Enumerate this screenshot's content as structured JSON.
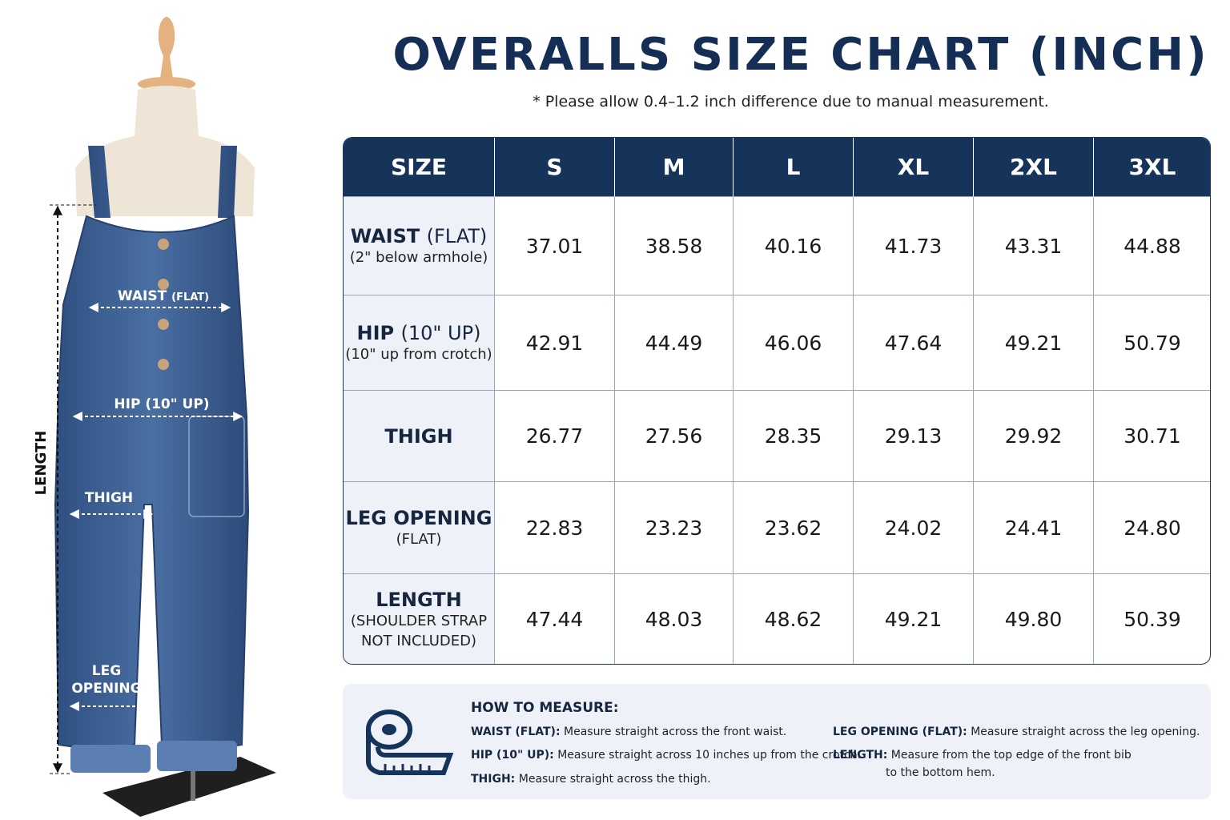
{
  "title": "OVERALLS SIZE CHART (INCH)",
  "subtitle": "* Please allow 0.4–1.2 inch difference due to manual measurement.",
  "figure": {
    "waist": "WAIST",
    "waist_note": "(FLAT)",
    "hip": "HIP (10\" UP)",
    "thigh": "THIGH",
    "leg_opening": [
      "LEG",
      "OPENING"
    ],
    "length": "LENGTH"
  },
  "table": {
    "header": [
      "SIZE",
      "S",
      "M",
      "L",
      "XL",
      "2XL",
      "3XL"
    ],
    "rows": [
      {
        "label": "WAIST",
        "label_note": "(FLAT)",
        "sub": [
          "(2\" below armhole)"
        ],
        "values": [
          "37.01",
          "38.58",
          "40.16",
          "41.73",
          "43.31",
          "44.88"
        ]
      },
      {
        "label": "HIP",
        "label_note": "(10\" UP)",
        "sub": [
          "(10\" up from crotch)"
        ],
        "values": [
          "42.91",
          "44.49",
          "46.06",
          "47.64",
          "49.21",
          "50.79"
        ]
      },
      {
        "label": "THIGH",
        "sub": [],
        "values": [
          "26.77",
          "27.56",
          "28.35",
          "29.13",
          "29.92",
          "30.71"
        ]
      },
      {
        "label": "LEG OPENING",
        "sub": [
          "(FLAT)"
        ],
        "values": [
          "22.83",
          "23.23",
          "23.62",
          "24.02",
          "24.41",
          "24.80"
        ]
      },
      {
        "label": "LENGTH",
        "sub": [
          "(SHOULDER STRAP",
          "NOT INCLUDED)"
        ],
        "values": [
          "47.44",
          "48.03",
          "48.62",
          "49.21",
          "49.80",
          "50.39"
        ]
      }
    ]
  },
  "how_to": {
    "title": "HOW TO MEASURE:",
    "left": [
      {
        "term": "WAIST (FLAT):",
        "text": [
          "Measure straight across the front waist."
        ]
      },
      {
        "term": "HIP (10\" UP):",
        "text": [
          "Measure straight across 10 inches up from the crotch."
        ]
      },
      {
        "term": "THIGH:",
        "text": [
          "Measure straight across the thigh."
        ]
      }
    ],
    "right": [
      {
        "term": "LEG OPENING (FLAT):",
        "text": [
          "Measure straight across the leg opening."
        ]
      },
      {
        "term": "LENGTH:",
        "text": [
          "Measure from the top edge of the front bib",
          "to the bottom hem."
        ]
      }
    ]
  }
}
